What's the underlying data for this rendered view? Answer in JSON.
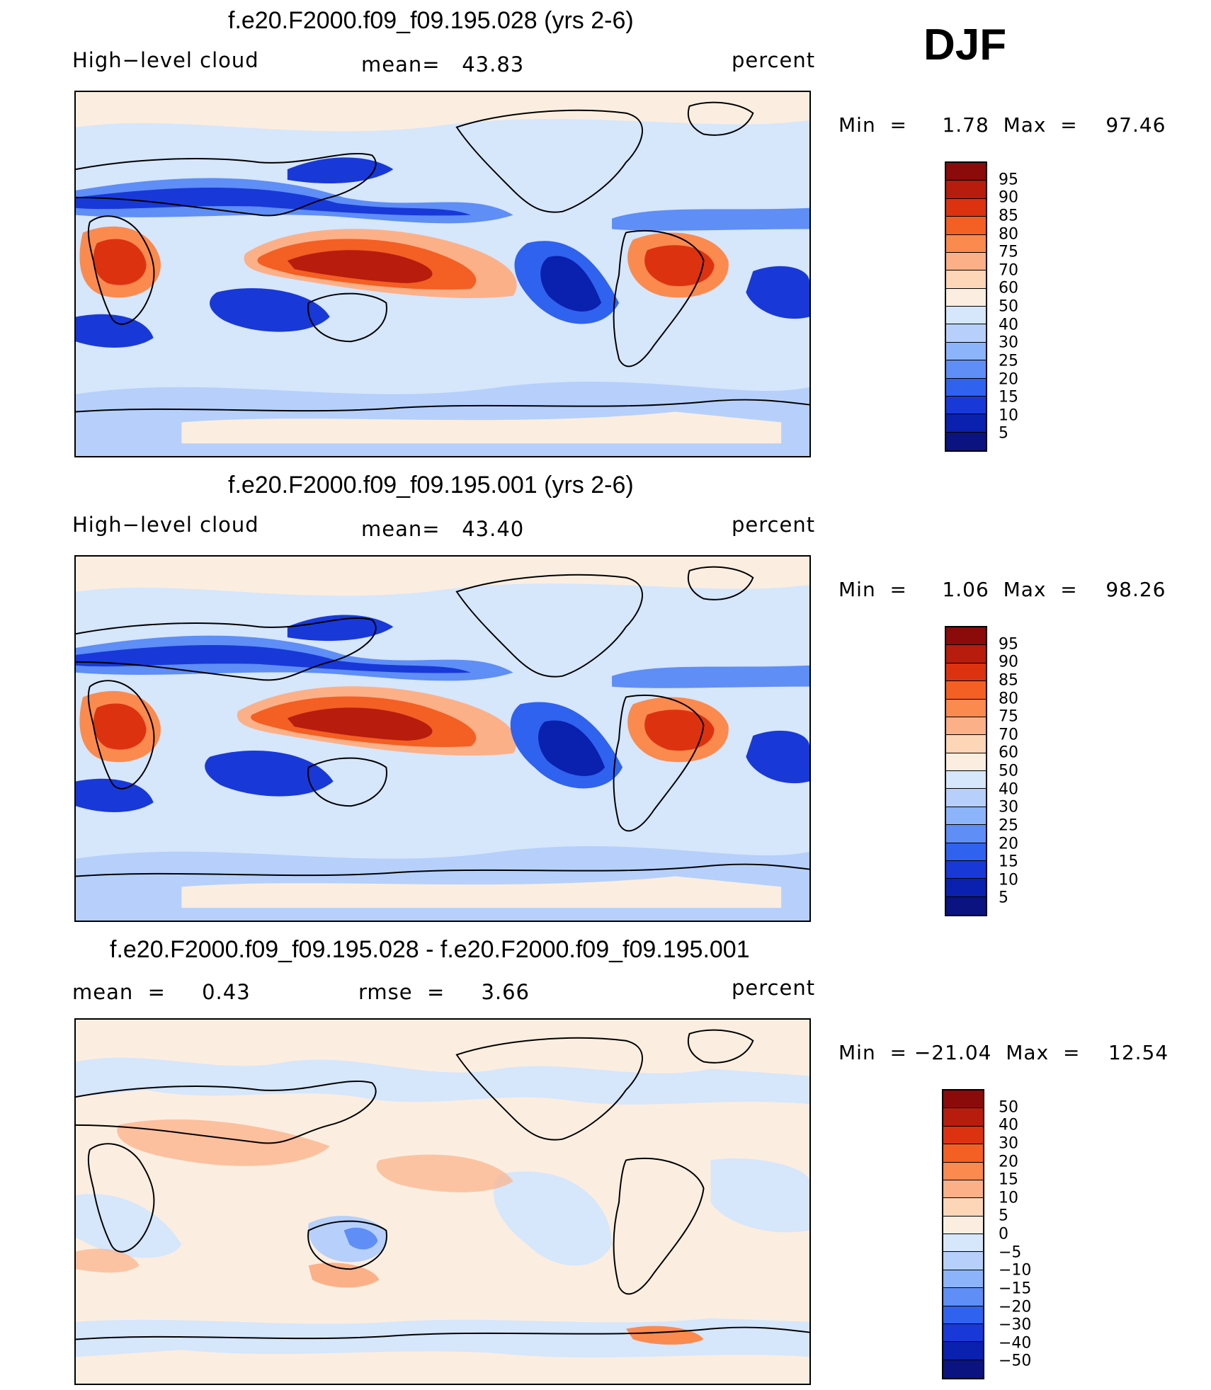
{
  "season": "DJF",
  "panels": [
    {
      "title": "f.e20.F2000.f09_f09.195.028 (yrs 2-6)",
      "left_label": "High−level cloud",
      "center_label": "mean=   43.83",
      "right_label": "percent",
      "minmax": "Min  =     1.78  Max  =    97.46",
      "colorbar_levels": [
        "95",
        "90",
        "85",
        "80",
        "75",
        "70",
        "60",
        "50",
        "40",
        "30",
        "25",
        "20",
        "15",
        "10",
        "5"
      ],
      "colorbar_colors": [
        "#8b0a0a",
        "#b71c0d",
        "#dd3210",
        "#f45f23",
        "#fb8a4f",
        "#fcb088",
        "#fdd6b8",
        "#fbeee0",
        "#d6e6fb",
        "#b6d0fb",
        "#8cb4fa",
        "#5e8ef6",
        "#2f62ef",
        "#1839d8",
        "#0a20ae",
        "#0a1380"
      ]
    },
    {
      "title": "f.e20.F2000.f09_f09.195.001 (yrs 2-6)",
      "left_label": "High−level cloud",
      "center_label": "mean=   43.40",
      "right_label": "percent",
      "minmax": "Min  =     1.06  Max  =    98.26",
      "colorbar_levels": [
        "95",
        "90",
        "85",
        "80",
        "75",
        "70",
        "60",
        "50",
        "40",
        "30",
        "25",
        "20",
        "15",
        "10",
        "5"
      ],
      "colorbar_colors": [
        "#8b0a0a",
        "#b71c0d",
        "#dd3210",
        "#f45f23",
        "#fb8a4f",
        "#fcb088",
        "#fdd6b8",
        "#fbeee0",
        "#d6e6fb",
        "#b6d0fb",
        "#8cb4fa",
        "#5e8ef6",
        "#2f62ef",
        "#1839d8",
        "#0a20ae",
        "#0a1380"
      ]
    },
    {
      "title": "f.e20.F2000.f09_f09.195.028 - f.e20.F2000.f09_f09.195.001",
      "left_label": "mean  =     0.43",
      "center_label": "rmse  =     3.66",
      "right_label": "percent",
      "minmax": "Min  = −21.04  Max  =    12.54",
      "colorbar_levels": [
        "50",
        "40",
        "30",
        "20",
        "15",
        "10",
        "5",
        "0",
        "−5",
        "−10",
        "−15",
        "−20",
        "−30",
        "−40",
        "−50"
      ],
      "colorbar_colors": [
        "#8b0a0a",
        "#b71c0d",
        "#dd3210",
        "#f45f23",
        "#fb8a4f",
        "#fcb088",
        "#fdd6b8",
        "#fbeee0",
        "#d6e6fb",
        "#b6d0fb",
        "#8cb4fa",
        "#5e8ef6",
        "#2f62ef",
        "#1839d8",
        "#0a20ae",
        "#0a1380"
      ]
    }
  ]
}
